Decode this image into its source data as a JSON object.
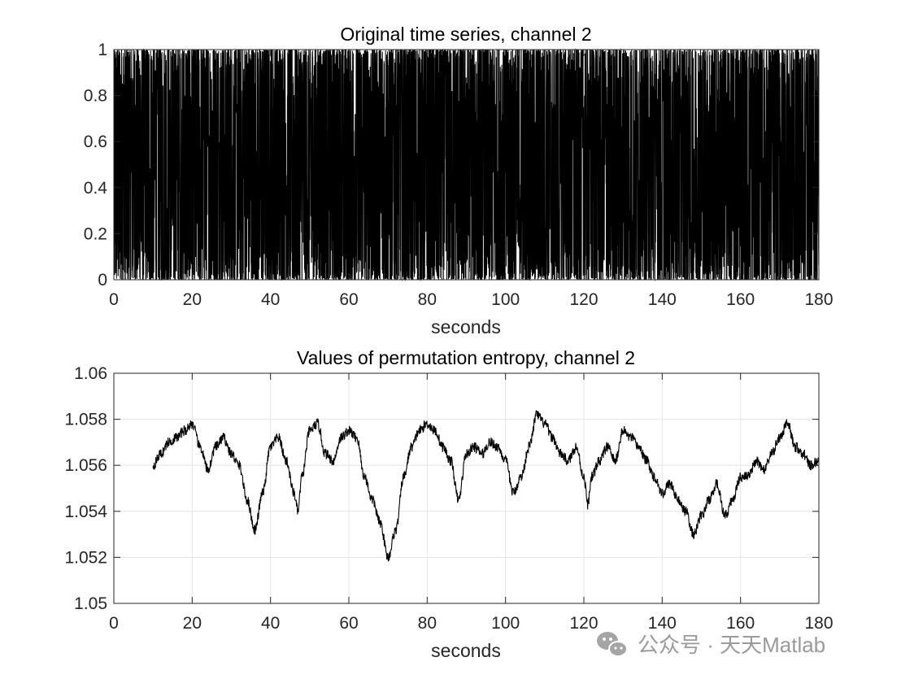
{
  "watermark": {
    "text": "公众号 · 天天Matlab",
    "icon": "wechat-icon"
  },
  "chart_data": [
    {
      "type": "line",
      "title": "Original time series, channel 2",
      "xlabel": "seconds",
      "ylabel": "",
      "xlim": [
        0,
        180
      ],
      "ylim": [
        0,
        1
      ],
      "xticks": [
        0,
        20,
        40,
        60,
        80,
        100,
        120,
        140,
        160,
        180
      ],
      "yticks": [
        0,
        0.2,
        0.4,
        0.6,
        0.8,
        1
      ],
      "ytick_labels": [
        "0",
        "0.2",
        "0.4",
        "0.6",
        "0.8",
        "1"
      ],
      "grid": false,
      "line_color": "#000000",
      "description_of_series": "dense uniform-like noise in [0, 1] over 0–180 s",
      "series": [
        {
          "x_range": [
            0,
            180
          ],
          "value_range": [
            0,
            1
          ],
          "notable_values": [
            {
              "x": 123,
              "y": 0.69
            },
            {
              "x": 79,
              "y": 0.23
            },
            {
              "x": 101,
              "y": 0.22
            }
          ]
        }
      ]
    },
    {
      "type": "line",
      "title": "Values of permutation entropy, channel 2",
      "xlabel": "seconds",
      "ylabel": "",
      "xlim": [
        0,
        180
      ],
      "ylim": [
        1.05,
        1.06
      ],
      "xticks": [
        0,
        20,
        40,
        60,
        80,
        100,
        120,
        140,
        160,
        180
      ],
      "yticks": [
        1.05,
        1.052,
        1.054,
        1.056,
        1.058,
        1.06
      ],
      "ytick_labels": [
        "1.05",
        "1.052",
        "1.054",
        "1.056",
        "1.058",
        "1.06"
      ],
      "grid": true,
      "line_color": "#000000",
      "series": [
        {
          "x": [
            10,
            12,
            14,
            16,
            18,
            20,
            22,
            24,
            26,
            28,
            30,
            32,
            34,
            36,
            38,
            40,
            42,
            44,
            46,
            47,
            48,
            50,
            52,
            54,
            56,
            58,
            60,
            62,
            64,
            66,
            68,
            70,
            72,
            74,
            76,
            78,
            80,
            82,
            84,
            86,
            88,
            90,
            92,
            94,
            96,
            98,
            100,
            102,
            104,
            106,
            108,
            110,
            112,
            114,
            116,
            118,
            120,
            121,
            122,
            124,
            126,
            128,
            130,
            132,
            134,
            136,
            138,
            140,
            142,
            144,
            146,
            148,
            150,
            152,
            154,
            156,
            158,
            160,
            162,
            164,
            166,
            168,
            170,
            172,
            174,
            176,
            178,
            180
          ],
          "y": [
            1.056,
            1.0565,
            1.057,
            1.0572,
            1.0575,
            1.0578,
            1.0568,
            1.0558,
            1.0568,
            1.0572,
            1.0565,
            1.056,
            1.0545,
            1.0532,
            1.0548,
            1.0568,
            1.0572,
            1.0562,
            1.0548,
            1.054,
            1.0555,
            1.0575,
            1.0578,
            1.0565,
            1.0562,
            1.0572,
            1.0575,
            1.0572,
            1.0555,
            1.0545,
            1.0535,
            1.052,
            1.0532,
            1.0555,
            1.0568,
            1.0575,
            1.0578,
            1.0575,
            1.0568,
            1.0562,
            1.0545,
            1.0565,
            1.0568,
            1.0565,
            1.057,
            1.0568,
            1.0562,
            1.0548,
            1.0555,
            1.0568,
            1.0582,
            1.0578,
            1.0572,
            1.0565,
            1.0562,
            1.0568,
            1.0555,
            1.0543,
            1.0555,
            1.0562,
            1.0568,
            1.0562,
            1.0575,
            1.0572,
            1.0568,
            1.0562,
            1.0555,
            1.0548,
            1.0552,
            1.0545,
            1.054,
            1.053,
            1.0538,
            1.0545,
            1.0552,
            1.0538,
            1.0545,
            1.0555,
            1.0555,
            1.0562,
            1.0558,
            1.0565,
            1.0572,
            1.0578,
            1.0568,
            1.0565,
            1.056,
            1.0562
          ]
        }
      ]
    }
  ]
}
